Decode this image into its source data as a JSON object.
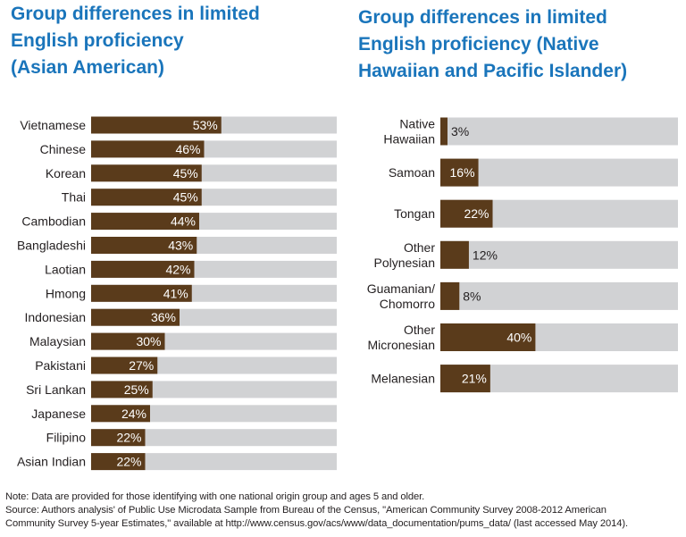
{
  "colors": {
    "title": "#1a75bb",
    "bar": "#5a3b1b",
    "track": "#d1d2d4",
    "text": "#231f20",
    "label_on_bar": "#ffffff"
  },
  "chart_data": [
    {
      "type": "bar",
      "orientation": "horizontal",
      "title": "Group differences in limited\nEnglish proficiency\n(Asian American)",
      "categories": [
        "Vietnamese",
        "Chinese",
        "Korean",
        "Thai",
        "Cambodian",
        "Bangladeshi",
        "Laotian",
        "Hmong",
        "Indonesian",
        "Malaysian",
        "Pakistani",
        "Sri Lankan",
        "Japanese",
        "Filipino",
        "Asian Indian"
      ],
      "values": [
        53,
        46,
        45,
        45,
        44,
        43,
        42,
        41,
        36,
        30,
        27,
        25,
        24,
        22,
        22
      ],
      "value_labels": [
        "53%",
        "46%",
        "45%",
        "45%",
        "44%",
        "43%",
        "42%",
        "41%",
        "36%",
        "30%",
        "27%",
        "25%",
        "24%",
        "22%",
        "22%"
      ],
      "xlim": [
        0,
        100
      ],
      "grid": false
    },
    {
      "type": "bar",
      "orientation": "horizontal",
      "title": "Group differences in limited\nEnglish proficiency (Native\nHawaiian and Pacific Islander)",
      "categories": [
        "Native\nHawaiian",
        "Samoan",
        "Tongan",
        "Other\nPolynesian",
        "Guamanian/\nChomorro",
        "Other\nMicronesian",
        "Melanesian"
      ],
      "values": [
        3,
        16,
        22,
        12,
        8,
        40,
        21
      ],
      "value_labels": [
        "3%",
        "16%",
        "22%",
        "12%",
        "8%",
        "40%",
        "21%"
      ],
      "xlim": [
        0,
        100
      ],
      "grid": false
    }
  ],
  "footer": {
    "note": "Note: Data are provided for those identifying with one national origin group and ages 5 and older.",
    "source_line1": "Source: Authors analysis' of Public Use Microdata Sample from Bureau of the Census, \"American Community Survey 2008-2012 American",
    "source_line2": "Community Survey 5-year Estimates,\" available at http://www.census.gov/acs/www/data_documentation/pums_data/ (last accessed May 2014)."
  }
}
